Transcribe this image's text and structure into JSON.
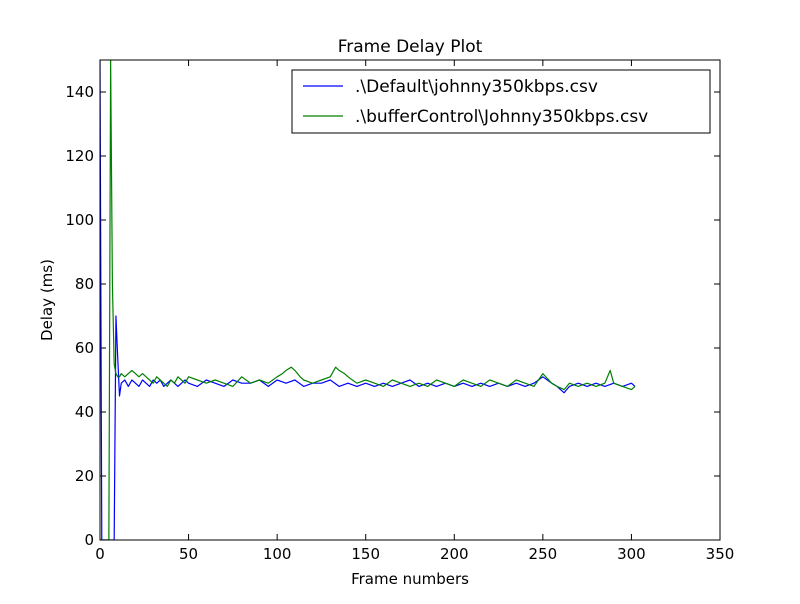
{
  "chart_data": {
    "type": "line",
    "title": "Frame Delay Plot",
    "xlabel": "Frame numbers",
    "ylabel": "Delay (ms)",
    "xlim": [
      0,
      350
    ],
    "ylim": [
      0,
      150
    ],
    "xticks": [
      0,
      50,
      100,
      150,
      200,
      250,
      300,
      350
    ],
    "yticks": [
      0,
      20,
      40,
      60,
      80,
      100,
      120,
      140
    ],
    "grid": false,
    "legend_position": "top-right",
    "series": [
      {
        "name": ".\\Default\\johnny350kbps.csv",
        "color": "#0000ff",
        "x": [
          0,
          1,
          2,
          3,
          4,
          5,
          6,
          7,
          8,
          9,
          10,
          11,
          12,
          14,
          16,
          18,
          20,
          22,
          24,
          26,
          28,
          30,
          32,
          34,
          36,
          38,
          40,
          42,
          44,
          46,
          48,
          50,
          55,
          60,
          65,
          70,
          75,
          80,
          85,
          90,
          95,
          100,
          105,
          110,
          115,
          120,
          125,
          130,
          135,
          140,
          145,
          150,
          155,
          160,
          165,
          170,
          175,
          180,
          185,
          190,
          195,
          200,
          205,
          210,
          215,
          220,
          225,
          230,
          235,
          240,
          245,
          250,
          255,
          258,
          262,
          265,
          270,
          275,
          280,
          285,
          290,
          295,
          300,
          302
        ],
        "y": [
          150,
          0,
          0,
          0,
          0,
          0,
          0,
          0,
          0,
          70,
          57,
          45,
          49,
          50,
          48,
          50,
          49,
          48,
          50,
          49,
          48,
          50,
          49,
          50,
          48,
          49,
          50,
          49,
          48,
          49,
          50,
          49,
          48,
          50,
          49,
          48,
          50,
          49,
          49,
          50,
          48,
          50,
          49,
          50,
          48,
          49,
          49,
          50,
          48,
          49,
          48,
          49,
          48,
          49,
          48,
          49,
          50,
          48,
          49,
          48,
          49,
          48,
          49,
          48,
          49,
          48,
          49,
          48,
          49,
          48,
          49,
          51,
          49,
          48,
          46,
          48,
          49,
          48,
          49,
          48,
          49,
          48,
          49,
          48
        ]
      },
      {
        "name": ".\\bufferControl\\Johnny350kbps.csv",
        "color": "#008000",
        "x": [
          0,
          1,
          2,
          3,
          4,
          5,
          6,
          7,
          8,
          9,
          10,
          11,
          12,
          14,
          16,
          18,
          20,
          22,
          24,
          26,
          28,
          30,
          32,
          34,
          36,
          38,
          40,
          42,
          44,
          46,
          48,
          50,
          55,
          60,
          65,
          70,
          75,
          80,
          85,
          90,
          95,
          100,
          103,
          105,
          108,
          110,
          113,
          115,
          120,
          125,
          130,
          133,
          135,
          138,
          140,
          145,
          150,
          155,
          160,
          165,
          170,
          175,
          180,
          185,
          190,
          195,
          200,
          205,
          210,
          215,
          220,
          225,
          230,
          235,
          240,
          245,
          250,
          255,
          258,
          262,
          265,
          270,
          275,
          280,
          285,
          288,
          290,
          295,
          300,
          302
        ],
        "y": [
          0,
          0,
          0,
          0,
          0,
          0,
          150,
          80,
          55,
          52,
          51,
          51,
          52,
          51,
          52,
          53,
          52,
          51,
          52,
          51,
          50,
          49,
          51,
          50,
          49,
          48,
          50,
          49,
          51,
          50,
          49,
          51,
          50,
          49,
          50,
          49,
          48,
          51,
          49,
          50,
          49,
          51,
          52,
          53,
          54,
          53,
          51,
          50,
          49,
          50,
          51,
          54,
          53,
          52,
          51,
          49,
          50,
          49,
          48,
          50,
          49,
          48,
          49,
          48,
          50,
          49,
          48,
          50,
          49,
          48,
          50,
          49,
          48,
          50,
          49,
          48,
          52,
          49,
          48,
          47,
          49,
          48,
          49,
          48,
          49,
          53,
          49,
          48,
          47,
          48
        ]
      }
    ]
  }
}
